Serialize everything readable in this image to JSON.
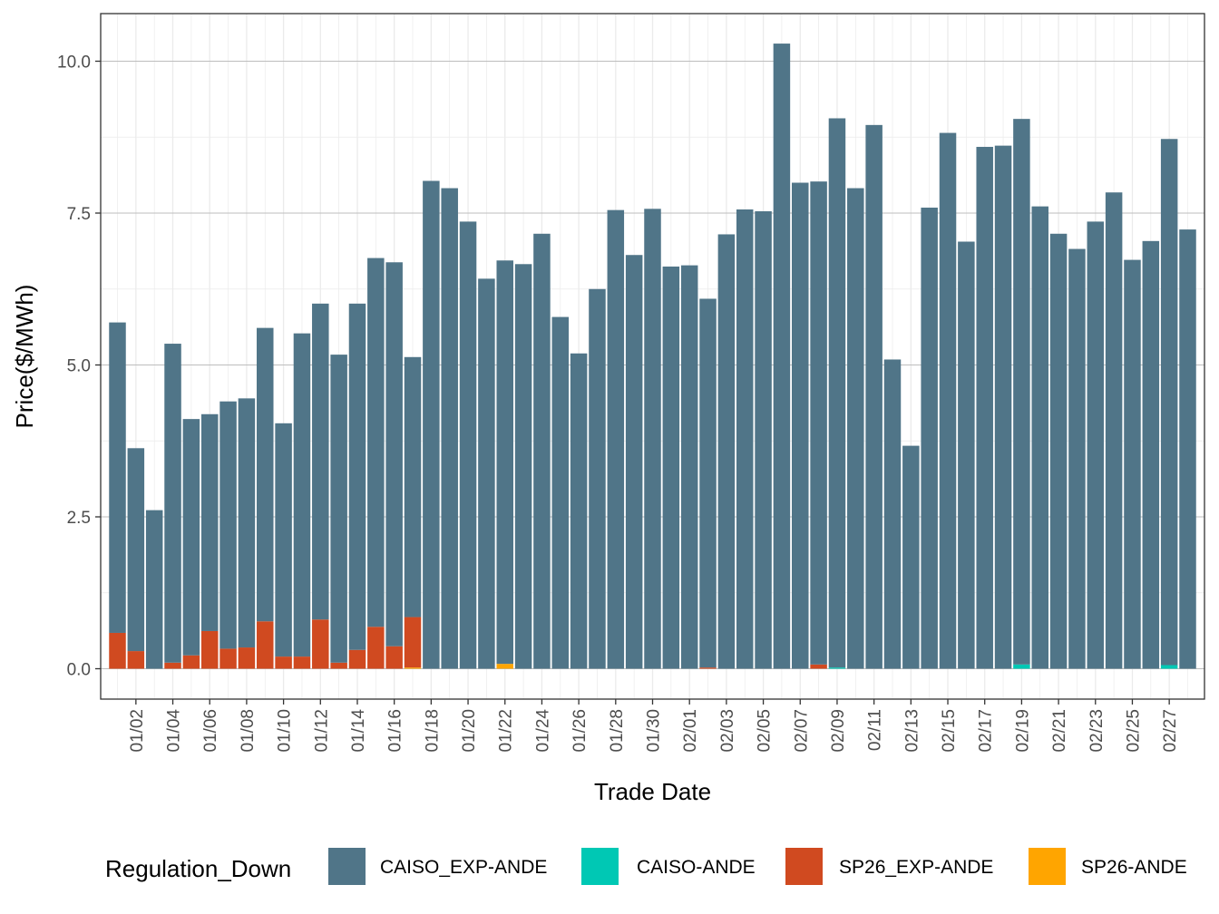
{
  "chart_data": {
    "type": "bar",
    "stacked": true,
    "title": "",
    "xlabel": "Trade Date",
    "ylabel": "Price($/MWh)",
    "ylim": [
      -0.5,
      10.5
    ],
    "y_ticks": [
      0.0,
      2.5,
      5.0,
      7.5,
      10.0
    ],
    "y_tick_labels": [
      "0.0",
      "2.5",
      "5.0",
      "7.5",
      "10.0"
    ],
    "grid": true,
    "legend_title": "Regulation_Down",
    "legend_position": "bottom",
    "categories": [
      "01/01",
      "01/02",
      "01/03",
      "01/04",
      "01/05",
      "01/06",
      "01/07",
      "01/08",
      "01/09",
      "01/10",
      "01/11",
      "01/12",
      "01/13",
      "01/14",
      "01/15",
      "01/16",
      "01/17",
      "01/18",
      "01/19",
      "01/20",
      "01/21",
      "01/22",
      "01/23",
      "01/24",
      "01/25",
      "01/26",
      "01/27",
      "01/28",
      "01/29",
      "01/30",
      "01/31",
      "02/01",
      "02/02",
      "02/03",
      "02/04",
      "02/05",
      "02/06",
      "02/07",
      "02/08",
      "02/09",
      "02/10",
      "02/11",
      "02/12",
      "02/13",
      "02/14",
      "02/15",
      "02/16",
      "02/17",
      "02/18",
      "02/19",
      "02/20",
      "02/21",
      "02/22",
      "02/23",
      "02/24",
      "02/25",
      "02/26",
      "02/27",
      "02/28"
    ],
    "x_tick_labels": [
      "01/02",
      "01/04",
      "01/06",
      "01/08",
      "01/10",
      "01/12",
      "01/14",
      "01/16",
      "01/18",
      "01/20",
      "01/22",
      "01/24",
      "01/26",
      "01/28",
      "01/30",
      "02/01",
      "02/03",
      "02/05",
      "02/07",
      "02/09",
      "02/11",
      "02/13",
      "02/15",
      "02/17",
      "02/19",
      "02/21",
      "02/23",
      "02/25",
      "02/27"
    ],
    "series": [
      {
        "name": "SP26-ANDE",
        "color": "#FFA500",
        "values": [
          0,
          0,
          0,
          0,
          0,
          0,
          0,
          0,
          0,
          0,
          0,
          0,
          0,
          0,
          0,
          0,
          0.02,
          0,
          0,
          0,
          0,
          0.08,
          0,
          0,
          0,
          0,
          0,
          0,
          0,
          0,
          0,
          0,
          0,
          0,
          0,
          0,
          0,
          0,
          0,
          0,
          0,
          0,
          0,
          0,
          0,
          0,
          0,
          0,
          0,
          0,
          0,
          0,
          0,
          0,
          0,
          0,
          0,
          0,
          0
        ]
      },
      {
        "name": "SP26_EXP-ANDE",
        "color": "#D04A20",
        "values": [
          0.59,
          0.29,
          0,
          0.1,
          0.22,
          0.62,
          0.33,
          0.35,
          0.78,
          0.2,
          0.2,
          0.81,
          0.1,
          0.31,
          0.69,
          0.37,
          0.83,
          0,
          0,
          0,
          0,
          0,
          0,
          0,
          0,
          0,
          0,
          0,
          0,
          0,
          0,
          0,
          0.02,
          0,
          0,
          0,
          0,
          0,
          0.07,
          0,
          0,
          0,
          0,
          0,
          0,
          0,
          0,
          0,
          0,
          0,
          0,
          0,
          0,
          0,
          0,
          0,
          0,
          0,
          0
        ]
      },
      {
        "name": "CAISO-ANDE",
        "color": "#00C8B4",
        "values": [
          0,
          0,
          0,
          0,
          0,
          0,
          0,
          0,
          0,
          0,
          0,
          0,
          0,
          0,
          0,
          0,
          0,
          0,
          0,
          0,
          0,
          0,
          0,
          0,
          0,
          0,
          0,
          0,
          0,
          0,
          0,
          0,
          0,
          0,
          0,
          0,
          0,
          0,
          0,
          0.02,
          0,
          0,
          0,
          0,
          0,
          0,
          0,
          0,
          0,
          0.07,
          0,
          0,
          0,
          0,
          0,
          0,
          0,
          0.06,
          0
        ]
      },
      {
        "name": "CAISO_EXP-ANDE",
        "color": "#507588",
        "values": [
          5.11,
          3.34,
          2.61,
          5.25,
          3.89,
          3.57,
          4.07,
          4.1,
          4.83,
          3.84,
          5.32,
          5.2,
          5.07,
          5.7,
          6.07,
          6.32,
          4.28,
          8.03,
          7.91,
          7.36,
          6.42,
          6.64,
          6.66,
          7.16,
          5.79,
          5.19,
          6.25,
          7.55,
          6.81,
          7.57,
          6.62,
          6.64,
          6.07,
          7.15,
          7.56,
          7.53,
          10.29,
          8.0,
          7.95,
          9.04,
          7.91,
          8.95,
          5.09,
          3.67,
          7.59,
          8.82,
          7.03,
          8.59,
          8.61,
          8.98,
          7.61,
          7.16,
          6.91,
          7.36,
          7.84,
          6.73,
          7.04,
          8.66,
          7.23
        ]
      }
    ],
    "legend_items": [
      {
        "name": "CAISO_EXP-ANDE",
        "color": "#507588"
      },
      {
        "name": "CAISO-ANDE",
        "color": "#00C8B4"
      },
      {
        "name": "SP26_EXP-ANDE",
        "color": "#D04A20"
      },
      {
        "name": "SP26-ANDE",
        "color": "#FFA500"
      }
    ]
  }
}
